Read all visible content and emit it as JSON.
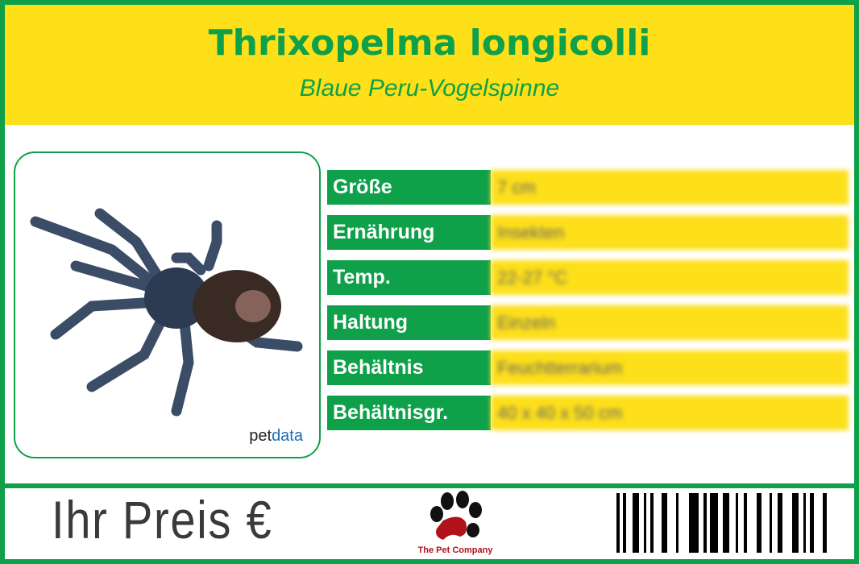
{
  "header": {
    "title": "Thrixopelma longicolli",
    "subtitle": "Blaue Peru-Vogelspinne"
  },
  "image": {
    "brand_prefix": "pet",
    "brand_suffix": "data",
    "brand_color": "#1b6db3"
  },
  "specs": [
    {
      "label": "Größe",
      "value": "7 cm"
    },
    {
      "label": "Ernährung",
      "value": "Insekten"
    },
    {
      "label": "Temp.",
      "value": "22-27 °C"
    },
    {
      "label": "Haltung",
      "value": "Einzeln"
    },
    {
      "label": "Behältnis",
      "value": "Feuchtterrarium"
    },
    {
      "label": "Behältnisgr.",
      "value": "40 x 40 x 50 cm"
    }
  ],
  "footer": {
    "price_label": "Ihr Preis €",
    "company": "The Pet Company"
  },
  "colors": {
    "green": "#0fa04a",
    "yellow": "#fddf1a",
    "logo_red": "#b0121a"
  }
}
